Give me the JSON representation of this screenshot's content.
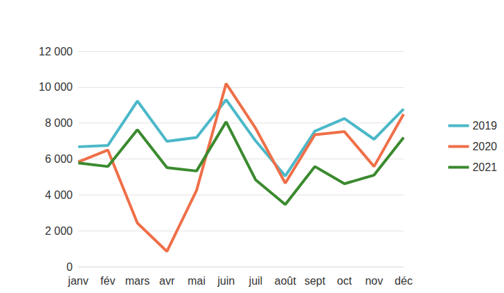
{
  "chart_data": {
    "type": "line",
    "categories": [
      "janv",
      "fév",
      "mars",
      "avr",
      "mai",
      "juin",
      "juil",
      "août",
      "sept",
      "oct",
      "nov",
      "déc"
    ],
    "series": [
      {
        "name": "2019",
        "color": "#4bb8c8",
        "values": [
          6680,
          6750,
          9230,
          6980,
          7200,
          9300,
          7000,
          5050,
          7550,
          8250,
          7100,
          8780
        ]
      },
      {
        "name": "2020",
        "color": "#ef6f48",
        "values": [
          5830,
          6500,
          2430,
          850,
          4250,
          10200,
          7700,
          4650,
          7350,
          7520,
          5580,
          8500
        ]
      },
      {
        "name": "2021",
        "color": "#3a8a2e",
        "values": [
          5780,
          5580,
          7630,
          5520,
          5330,
          8070,
          4830,
          3460,
          5580,
          4620,
          5100,
          7200
        ]
      }
    ],
    "ylim": [
      0,
      12000
    ],
    "yticks": [
      0,
      {
        "value": 2000,
        "label": "2 000"
      },
      {
        "value": 4000,
        "label": "4 000"
      },
      {
        "value": 6000,
        "label": "6 000"
      },
      {
        "value": 8000,
        "label": "8 000"
      },
      {
        "value": 10000,
        "label": "10 000"
      },
      {
        "value": 12000,
        "label": "12 000"
      }
    ],
    "grid": true,
    "legend": "right"
  }
}
